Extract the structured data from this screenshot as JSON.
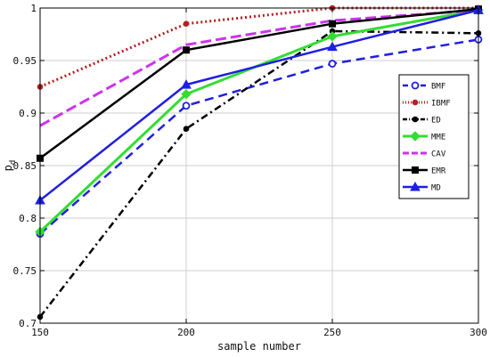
{
  "chart_data": {
    "type": "line",
    "title": "",
    "xlabel": "sample number",
    "ylabel": "p",
    "ylabel_subscript": "d",
    "x": [
      150,
      200,
      250,
      300
    ],
    "xlim": [
      150,
      300
    ],
    "ylim": [
      0.7,
      1.0
    ],
    "x_ticks": [
      "150",
      "200",
      "250",
      "300"
    ],
    "y_ticks": [
      "0.7",
      "0.75",
      "0.8",
      "0.85",
      "0.9",
      "0.95",
      "1"
    ],
    "grid": true,
    "legend_position": "right",
    "series": [
      {
        "name": "BMF",
        "values": [
          0.785,
          0.907,
          0.947,
          0.97
        ],
        "color": "#1f1fe0",
        "dash": "10,6",
        "marker": "circle-open",
        "width": 2.5
      },
      {
        "name": "IBMF",
        "values": [
          0.925,
          0.985,
          1.0,
          1.0
        ],
        "color": "#b22222",
        "dash": "2,3",
        "marker": "dot",
        "width": 3
      },
      {
        "name": "ED",
        "values": [
          0.706,
          0.885,
          0.978,
          0.976
        ],
        "color": "#000000",
        "dash": "8,4,2,4",
        "marker": "dot",
        "width": 2.5
      },
      {
        "name": "MME",
        "values": [
          0.787,
          0.918,
          0.973,
          0.998
        ],
        "color": "#33dd33",
        "dash": "",
        "marker": "diamond",
        "width": 3
      },
      {
        "name": "CAV",
        "values": [
          0.888,
          0.965,
          0.988,
          0.998
        ],
        "color": "#cc33ee",
        "dash": "12,5",
        "marker": "none",
        "width": 3
      },
      {
        "name": "EMR",
        "values": [
          0.857,
          0.96,
          0.985,
          0.999
        ],
        "color": "#000000",
        "dash": "",
        "marker": "square",
        "width": 2.5
      },
      {
        "name": "MD",
        "values": [
          0.817,
          0.927,
          0.963,
          0.998
        ],
        "color": "#1f1fe0",
        "dash": "",
        "marker": "triangle",
        "width": 2.5
      }
    ]
  }
}
